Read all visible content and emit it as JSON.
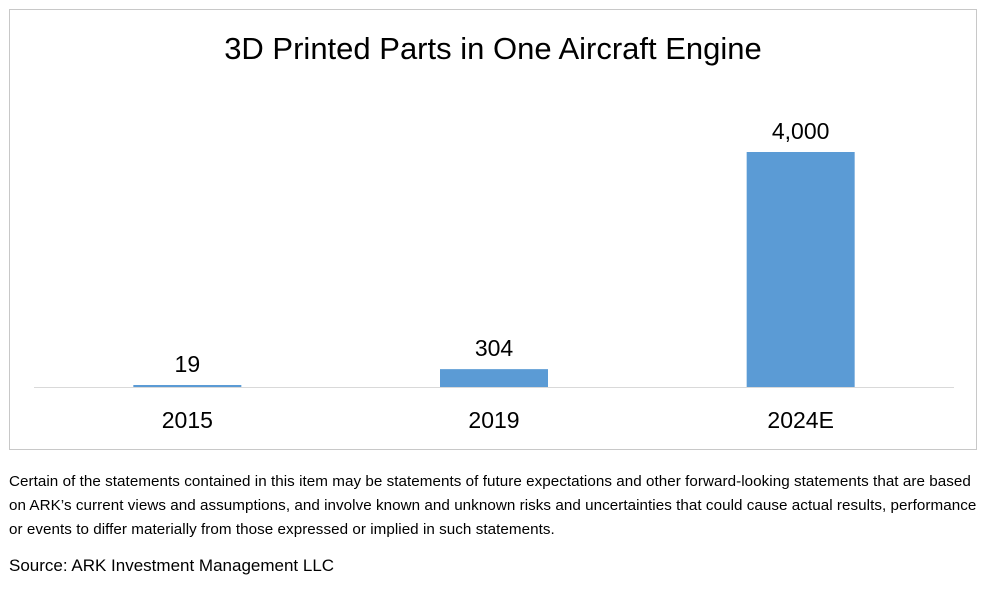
{
  "chart_data": {
    "type": "bar",
    "title": "3D Printed Parts in One Aircraft Engine",
    "categories": [
      "2015",
      "2019",
      "2024E"
    ],
    "values": [
      19,
      304,
      4000
    ],
    "value_labels": [
      "19",
      "304",
      "4,000"
    ],
    "xlabel": "",
    "ylabel": "",
    "ylim": [
      0,
      4000
    ],
    "grid": false,
    "legend": "none",
    "bar_color": "#5B9BD5",
    "axis_color": "#d9d9d9"
  },
  "footer": {
    "disclaimer": "Certain of the statements contained in this item may be statements of future expectations and other forward-looking statements that are based on ARK’s current views and assumptions, and involve known and unknown risks and uncertainties that could cause actual results, performance or events to differ materially from those expressed or implied in such statements.",
    "source": "Source: ARK Investment Management LLC"
  }
}
